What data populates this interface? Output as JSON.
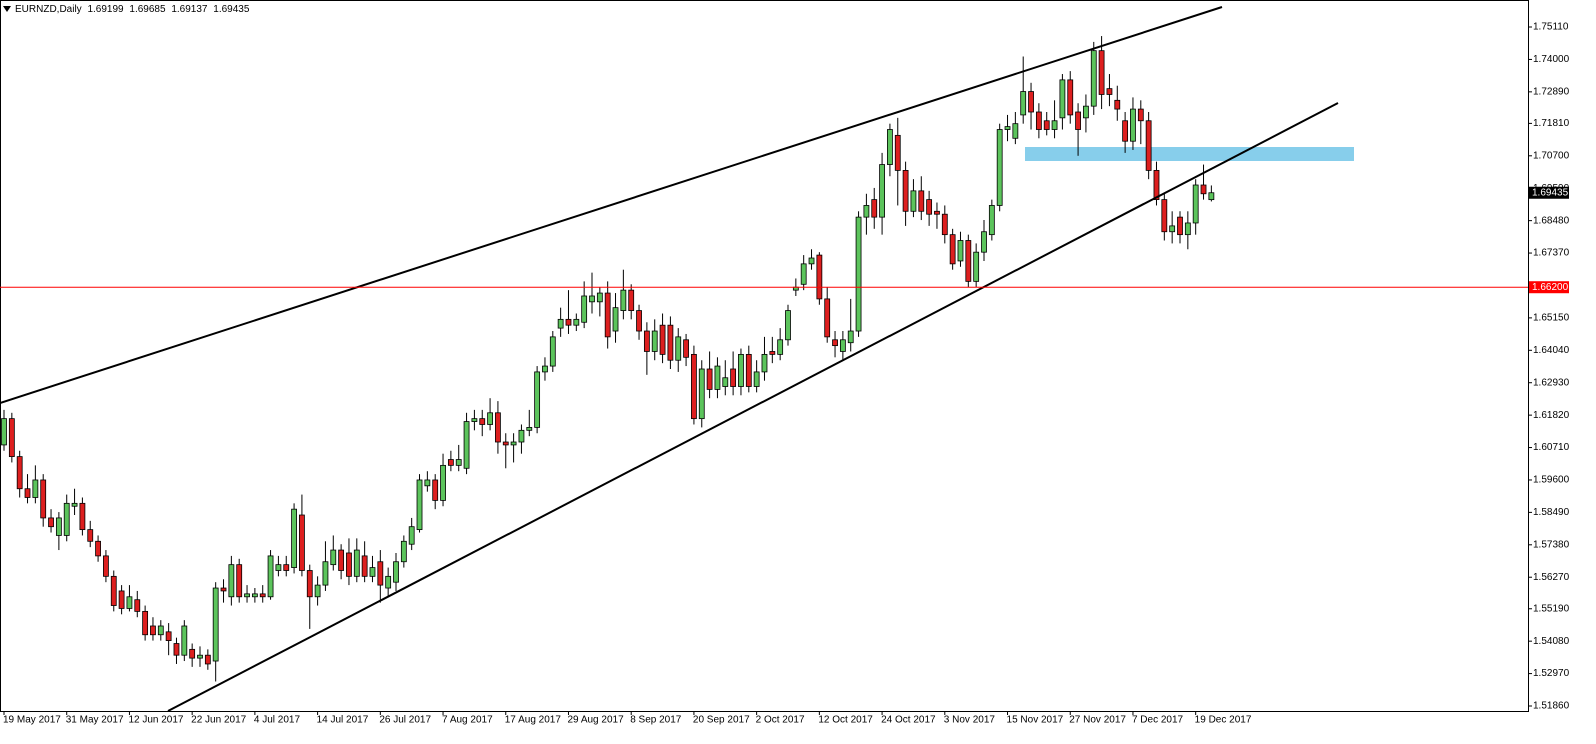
{
  "chart_data": {
    "type": "candlestick",
    "title": "EURNZD,Daily",
    "categories": [
      "19 May 2017",
      null,
      null,
      null,
      null,
      null,
      null,
      null,
      "31 May 2017",
      null,
      null,
      null,
      null,
      null,
      null,
      null,
      "12 Jun 2017",
      null,
      null,
      null,
      null,
      null,
      null,
      null,
      "22 Jun 2017",
      null,
      null,
      null,
      null,
      null,
      null,
      null,
      "4 Jul 2017",
      null,
      null,
      null,
      null,
      null,
      null,
      null,
      "14 Jul 2017",
      null,
      null,
      null,
      null,
      null,
      null,
      null,
      "26 Jul 2017",
      null,
      null,
      null,
      null,
      null,
      null,
      null,
      "7 Aug 2017",
      null,
      null,
      null,
      null,
      null,
      null,
      null,
      "17 Aug 2017",
      null,
      null,
      null,
      null,
      null,
      null,
      null,
      "29 Aug 2017",
      null,
      null,
      null,
      null,
      null,
      null,
      null,
      "8 Sep 2017",
      null,
      null,
      null,
      null,
      null,
      null,
      null,
      "20 Sep 2017",
      null,
      null,
      null,
      null,
      null,
      null,
      null,
      "2 Oct 2017",
      null,
      null,
      null,
      null,
      null,
      null,
      null,
      "12 Oct 2017",
      null,
      null,
      null,
      null,
      null,
      null,
      null,
      "24 Oct 2017",
      null,
      null,
      null,
      null,
      null,
      null,
      null,
      "3 Nov 2017",
      null,
      null,
      null,
      null,
      null,
      null,
      null,
      "15 Nov 2017",
      null,
      null,
      null,
      null,
      null,
      null,
      null,
      "27 Nov 2017",
      null,
      null,
      null,
      null,
      null,
      null,
      null,
      "7 Dec 2017",
      null,
      null,
      null,
      null,
      null,
      null,
      null,
      "19 Dec 2017",
      null,
      null
    ],
    "open": [
      1.608,
      1.617,
      1.604,
      1.593,
      1.59,
      1.596,
      1.583,
      1.577,
      1.577,
      1.587,
      1.588,
      1.579,
      1.575,
      1.57,
      1.563,
      1.558,
      1.552,
      1.555,
      1.551,
      1.546,
      1.543,
      1.544,
      1.54,
      1.536,
      1.538,
      1.535,
      1.536,
      1.534,
      1.559,
      1.556,
      1.567,
      1.556,
      1.556,
      1.557,
      1.556,
      1.565,
      1.567,
      1.566,
      1.584,
      1.565,
      1.556,
      1.56,
      1.567,
      1.572,
      1.571,
      1.563,
      1.57,
      1.563,
      1.568,
      1.559,
      1.561,
      1.568,
      1.574,
      1.579,
      1.594,
      1.596,
      1.589,
      1.603,
      1.601,
      1.6,
      1.616,
      1.617,
      1.615,
      1.619,
      1.609,
      1.608,
      1.609,
      1.613,
      1.614,
      1.633,
      1.635,
      1.648,
      1.651,
      1.649,
      1.65,
      1.657,
      1.657,
      1.66,
      1.647,
      1.654,
      1.661,
      1.654,
      1.647,
      1.64,
      1.649,
      1.649,
      1.637,
      1.644,
      1.639,
      1.617,
      1.634,
      1.627,
      1.628,
      1.634,
      1.628,
      1.639,
      1.628,
      1.633,
      1.64,
      1.639,
      1.644,
      1.661,
      1.663,
      1.67,
      1.673,
      1.658,
      1.644,
      1.64,
      1.643,
      1.647,
      1.686,
      1.692,
      1.686,
      1.704,
      1.714,
      1.702,
      1.688,
      1.695,
      1.692,
      1.688,
      1.687,
      1.68,
      1.671,
      1.678,
      1.664,
      1.674,
      1.68,
      1.69,
      1.716,
      1.713,
      1.721,
      1.729,
      1.722,
      1.719,
      1.716,
      1.72,
      1.733,
      1.722,
      1.72,
      1.724,
      1.743,
      1.73,
      1.726,
      1.719,
      1.712,
      1.723,
      1.719,
      1.702,
      1.692,
      1.681,
      1.686,
      1.68,
      1.684,
      1.697,
      1.69199
    ],
    "high": [
      1.62,
      1.619,
      1.606,
      1.598,
      1.601,
      1.598,
      1.586,
      1.585,
      1.591,
      1.593,
      1.59,
      1.582,
      1.577,
      1.572,
      1.565,
      1.56,
      1.56,
      1.558,
      1.553,
      1.549,
      1.548,
      1.547,
      1.542,
      1.548,
      1.54,
      1.539,
      1.538,
      1.561,
      1.562,
      1.57,
      1.569,
      1.56,
      1.559,
      1.56,
      1.572,
      1.57,
      1.57,
      1.588,
      1.591,
      1.567,
      1.563,
      1.575,
      1.577,
      1.574,
      1.576,
      1.576,
      1.575,
      1.57,
      1.572,
      1.566,
      1.571,
      1.577,
      1.583,
      1.598,
      1.599,
      1.598,
      1.605,
      1.606,
      1.608,
      1.619,
      1.62,
      1.62,
      1.624,
      1.623,
      1.612,
      1.612,
      1.615,
      1.62,
      1.635,
      1.638,
      1.647,
      1.655,
      1.661,
      1.653,
      1.664,
      1.667,
      1.662,
      1.664,
      1.66,
      1.668,
      1.663,
      1.656,
      1.65,
      1.651,
      1.653,
      1.652,
      1.648,
      1.646,
      1.642,
      1.637,
      1.64,
      1.638,
      1.637,
      1.64,
      1.641,
      1.642,
      1.637,
      1.645,
      1.645,
      1.648,
      1.656,
      1.665,
      1.673,
      1.675,
      1.674,
      1.662,
      1.647,
      1.647,
      1.658,
      1.688,
      1.694,
      1.696,
      1.708,
      1.718,
      1.72,
      1.705,
      1.699,
      1.7,
      1.695,
      1.691,
      1.69,
      1.682,
      1.681,
      1.68,
      1.677,
      1.685,
      1.692,
      1.718,
      1.721,
      1.722,
      1.741,
      1.732,
      1.725,
      1.722,
      1.726,
      1.735,
      1.736,
      1.725,
      1.728,
      1.746,
      1.748,
      1.735,
      1.731,
      1.722,
      1.727,
      1.726,
      1.722,
      1.705,
      1.694,
      1.688,
      1.688,
      1.688,
      1.699,
      1.704,
      1.69685
    ],
    "low": [
      1.606,
      1.602,
      1.59,
      1.588,
      1.588,
      1.58,
      1.578,
      1.572,
      1.575,
      1.584,
      1.577,
      1.573,
      1.568,
      1.561,
      1.551,
      1.55,
      1.551,
      1.549,
      1.541,
      1.541,
      1.541,
      1.536,
      1.533,
      1.534,
      1.532,
      1.532,
      1.531,
      1.527,
      1.554,
      1.553,
      1.554,
      1.554,
      1.554,
      1.554,
      1.555,
      1.563,
      1.563,
      1.564,
      1.563,
      1.545,
      1.553,
      1.558,
      1.565,
      1.562,
      1.56,
      1.561,
      1.561,
      1.561,
      1.554,
      1.556,
      1.558,
      1.566,
      1.572,
      1.578,
      1.592,
      1.586,
      1.587,
      1.599,
      1.599,
      1.598,
      1.613,
      1.611,
      1.613,
      1.605,
      1.6,
      1.602,
      1.605,
      1.611,
      1.612,
      1.63,
      1.633,
      1.645,
      1.646,
      1.647,
      1.648,
      1.653,
      1.652,
      1.641,
      1.643,
      1.651,
      1.651,
      1.644,
      1.632,
      1.637,
      1.636,
      1.634,
      1.633,
      1.635,
      1.615,
      1.614,
      1.624,
      1.624,
      1.625,
      1.625,
      1.625,
      1.626,
      1.626,
      1.63,
      1.636,
      1.637,
      1.642,
      1.659,
      1.661,
      1.668,
      1.656,
      1.643,
      1.638,
      1.637,
      1.64,
      1.645,
      1.68,
      1.682,
      1.68,
      1.7,
      1.69,
      1.683,
      1.686,
      1.685,
      1.683,
      1.682,
      1.677,
      1.668,
      1.669,
      1.662,
      1.662,
      1.671,
      1.678,
      1.688,
      1.712,
      1.711,
      1.718,
      1.716,
      1.713,
      1.714,
      1.713,
      1.716,
      1.718,
      1.707,
      1.715,
      1.721,
      1.723,
      1.724,
      1.719,
      1.708,
      1.709,
      1.711,
      1.699,
      1.69,
      1.678,
      1.677,
      1.677,
      1.675,
      1.68,
      1.692,
      1.69137
    ],
    "close": [
      1.617,
      1.604,
      1.593,
      1.59,
      1.596,
      1.583,
      1.58,
      1.583,
      1.588,
      1.588,
      1.579,
      1.575,
      1.57,
      1.563,
      1.553,
      1.552,
      1.556,
      1.551,
      1.543,
      1.543,
      1.546,
      1.541,
      1.536,
      1.546,
      1.535,
      1.536,
      1.533,
      1.559,
      1.558,
      1.567,
      1.556,
      1.557,
      1.557,
      1.556,
      1.57,
      1.567,
      1.565,
      1.586,
      1.565,
      1.556,
      1.56,
      1.568,
      1.572,
      1.565,
      1.563,
      1.572,
      1.563,
      1.566,
      1.56,
      1.563,
      1.568,
      1.575,
      1.58,
      1.596,
      1.596,
      1.589,
      1.601,
      1.601,
      1.603,
      1.616,
      1.617,
      1.615,
      1.619,
      1.609,
      1.608,
      1.609,
      1.613,
      1.614,
      1.633,
      1.635,
      1.645,
      1.651,
      1.649,
      1.651,
      1.659,
      1.659,
      1.66,
      1.645,
      1.655,
      1.661,
      1.654,
      1.647,
      1.64,
      1.647,
      1.639,
      1.637,
      1.645,
      1.638,
      1.617,
      1.634,
      1.627,
      1.635,
      1.631,
      1.628,
      1.639,
      1.628,
      1.633,
      1.639,
      1.639,
      1.644,
      1.654,
      1.662,
      1.67,
      1.672,
      1.658,
      1.645,
      1.642,
      1.644,
      1.647,
      1.686,
      1.69,
      1.686,
      1.704,
      1.716,
      1.702,
      1.688,
      1.695,
      1.688,
      1.687,
      1.687,
      1.68,
      1.67,
      1.678,
      1.664,
      1.674,
      1.681,
      1.69,
      1.716,
      1.717,
      1.718,
      1.729,
      1.722,
      1.716,
      1.716,
      1.719,
      1.733,
      1.721,
      1.716,
      1.724,
      1.743,
      1.728,
      1.728,
      1.723,
      1.712,
      1.723,
      1.719,
      1.702,
      1.692,
      1.681,
      1.683,
      1.68,
      1.684,
      1.697,
      1.694,
      1.69435
    ],
    "up_color": "#5cc45c",
    "down_color": "#dd1f1f",
    "ylim": [
      1.51689,
      1.76035
    ],
    "yticks": [
      {
        "value": 1.7511,
        "label": "1.75110"
      },
      {
        "value": 1.74,
        "label": "1.74000"
      },
      {
        "value": 1.7289,
        "label": "1.72890"
      },
      {
        "value": 1.7181,
        "label": "1.71810"
      },
      {
        "value": 1.707,
        "label": "1.70700"
      },
      {
        "value": 1.6959,
        "label": "1.69590"
      },
      {
        "value": 1.6848,
        "label": "1.68480"
      },
      {
        "value": 1.6737,
        "label": "1.67370"
      },
      {
        "value": 1.6515,
        "label": "1.65150"
      },
      {
        "value": 1.6404,
        "label": "1.64040"
      },
      {
        "value": 1.6293,
        "label": "1.62930"
      },
      {
        "value": 1.6182,
        "label": "1.61820"
      },
      {
        "value": 1.6071,
        "label": "1.60710"
      },
      {
        "value": 1.596,
        "label": "1.59600"
      },
      {
        "value": 1.5849,
        "label": "1.58490"
      },
      {
        "value": 1.5738,
        "label": "1.57380"
      },
      {
        "value": 1.5627,
        "label": "1.56270"
      },
      {
        "value": 1.5519,
        "label": "1.55190"
      },
      {
        "value": 1.5408,
        "label": "1.54080"
      },
      {
        "value": 1.5297,
        "label": "1.52970"
      },
      {
        "value": 1.5186,
        "label": "1.51860"
      }
    ],
    "hlines": [
      {
        "value": 1.662,
        "label": "1.66200",
        "color": "#ff0000"
      }
    ]
  }
}
